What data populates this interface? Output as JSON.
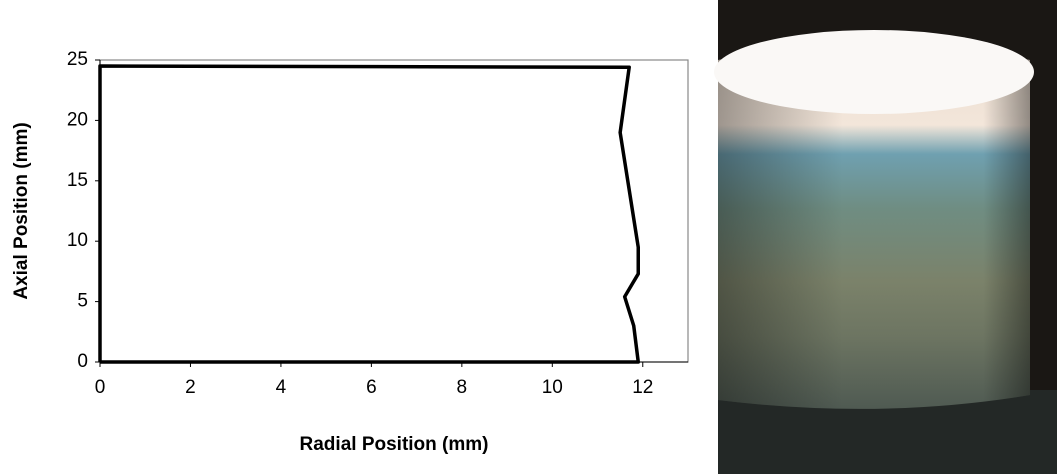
{
  "chart_data": {
    "type": "line",
    "x_label": "Radial Position (mm)",
    "y_label": "Axial Position (mm)",
    "x": [
      0,
      11.9,
      11.8,
      11.6,
      11.9,
      11.9,
      11.5,
      11.7,
      0,
      0
    ],
    "values": [
      0,
      0,
      3,
      5.4,
      7.3,
      9.5,
      19,
      24.4,
      24.5,
      0
    ],
    "color": "#000000",
    "xlim": [
      0,
      13
    ],
    "xticks": [
      0,
      2,
      4,
      6,
      8,
      10,
      12
    ],
    "ylim": [
      0,
      25
    ],
    "yticks": [
      0,
      5,
      10,
      15,
      20,
      25
    ]
  }
}
